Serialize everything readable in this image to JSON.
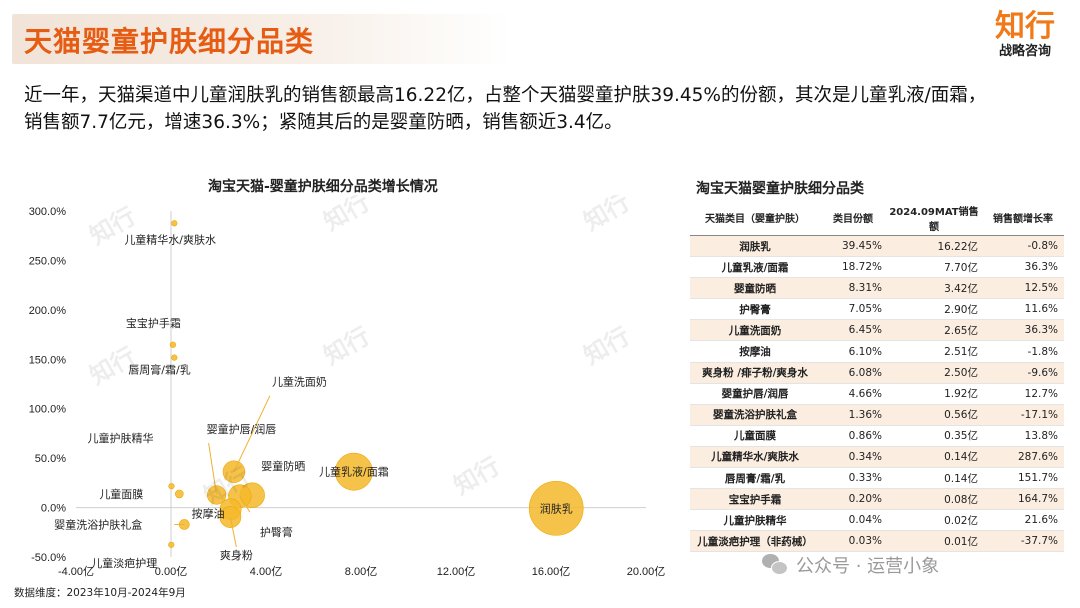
{
  "header": {
    "title": "天猫婴童护肤细分品类",
    "logo_main": "知行",
    "logo_sub": "战略咨询"
  },
  "summary": {
    "line1": "近一年，天猫渠道中儿童润肤乳的销售额最高16.22亿，占整个天猫婴童护肤39.45%的份额，其次是儿童乳液/面霜，",
    "line2": "销售额7.7亿元，增速36.3%；紧随其后的是婴童防晒，销售额近3.4亿。"
  },
  "source": "数据维度：2023年10月-2024年9月",
  "watermark": {
    "text_main": "知行",
    "text_sub": "战略咨询"
  },
  "footer": {
    "brand": "公众号 · 运营小象",
    "icon": "wechat-icon"
  },
  "colors": {
    "accent": "#e65c12",
    "bubble": "#f5b82a",
    "table_alt": "#fbeee1"
  },
  "chart_data": {
    "type": "scatter",
    "title": "淘宝天猫-婴童护肤细分品类增长情况",
    "xlabel": "",
    "ylabel": "",
    "xlim": [
      -4,
      20
    ],
    "ylim": [
      -50,
      300
    ],
    "x_ticks": [
      "-4.00亿",
      "0.00亿",
      "4.00亿",
      "8.00亿",
      "12.00亿",
      "16.00亿",
      "20.00亿"
    ],
    "y_ticks": [
      "300.0%",
      "250.0%",
      "200.0%",
      "150.0%",
      "100.0%",
      "50.0%",
      "0.0%",
      "-50.0%"
    ],
    "grid": false,
    "points": [
      {
        "name": "润肤乳",
        "x": 16.22,
        "y": -0.8,
        "share": 39.45
      },
      {
        "name": "儿童乳液/面霜",
        "x": 7.7,
        "y": 36.3,
        "share": 18.72
      },
      {
        "name": "婴童防晒",
        "x": 3.42,
        "y": 12.5,
        "share": 8.31
      },
      {
        "name": "护臀膏",
        "x": 2.9,
        "y": 11.6,
        "share": 7.05
      },
      {
        "name": "儿童洗面奶",
        "x": 2.65,
        "y": 36.3,
        "share": 6.45
      },
      {
        "name": "按摩油",
        "x": 2.51,
        "y": -1.8,
        "share": 6.1
      },
      {
        "name": "爽身粉",
        "x": 2.5,
        "y": -9.6,
        "share": 6.08
      },
      {
        "name": "婴童护唇/润唇",
        "x": 1.92,
        "y": 12.7,
        "share": 4.66
      },
      {
        "name": "婴童洗浴护肤礼盒",
        "x": 0.56,
        "y": -17.1,
        "share": 1.36
      },
      {
        "name": "儿童面膜",
        "x": 0.35,
        "y": 13.8,
        "share": 0.86
      },
      {
        "name": "儿童精华水/爽肤水",
        "x": 0.14,
        "y": 287.6,
        "share": 0.34
      },
      {
        "name": "唇周膏/霜/乳",
        "x": 0.14,
        "y": 151.7,
        "share": 0.33
      },
      {
        "name": "宝宝护手霜",
        "x": 0.08,
        "y": 164.7,
        "share": 0.2
      },
      {
        "name": "儿童护肤精华",
        "x": 0.02,
        "y": 21.6,
        "share": 0.04
      },
      {
        "name": "儿童淡疤护理",
        "x": 0.01,
        "y": -37.7,
        "share": 0.03
      }
    ],
    "labels": {
      "润肤乳": "润肤乳",
      "儿童乳液/面霜": "儿童乳液/面霜",
      "婴童防晒": "婴童防晒",
      "护臀膏": "护臀膏",
      "儿童洗面奶": "儿童洗面奶",
      "按摩油": "按摩油",
      "爽身粉": "爽身粉",
      "婴童护唇/润唇": "婴童护唇/润唇",
      "婴童洗浴护肤礼盒": "婴童洗浴护肤礼盒",
      "儿童面膜": "儿童面膜",
      "儿童精华水/爽肤水": "儿童精华水/爽肤水",
      "唇周膏/霜/乳": "唇周膏/霜/乳",
      "宝宝护手霜": "宝宝护手霜",
      "儿童护肤精华": "儿童护肤精华",
      "儿童淡疤护理": "儿童淡疤护理"
    }
  },
  "table": {
    "title": "淘宝天猫婴童护肤细分品类",
    "headers": [
      "天猫类目（婴童护肤）",
      "类目份额",
      "2024.09MAT销售额",
      "销售额增长率"
    ],
    "rows": [
      [
        "润肤乳",
        "39.45%",
        "16.22亿",
        "-0.8%"
      ],
      [
        "儿童乳液/面霜",
        "18.72%",
        "7.70亿",
        "36.3%"
      ],
      [
        "婴童防晒",
        "8.31%",
        "3.42亿",
        "12.5%"
      ],
      [
        "护臀膏",
        "7.05%",
        "2.90亿",
        "11.6%"
      ],
      [
        "儿童洗面奶",
        "6.45%",
        "2.65亿",
        "36.3%"
      ],
      [
        "按摩油",
        "6.10%",
        "2.51亿",
        "-1.8%"
      ],
      [
        "爽身粉 /痱子粉/爽身水",
        "6.08%",
        "2.50亿",
        "-9.6%"
      ],
      [
        "婴童护唇/润唇",
        "4.66%",
        "1.92亿",
        "12.7%"
      ],
      [
        "婴童洗浴护肤礼盒",
        "1.36%",
        "0.56亿",
        "-17.1%"
      ],
      [
        "儿童面膜",
        "0.86%",
        "0.35亿",
        "13.8%"
      ],
      [
        "儿童精华水/爽肤水",
        "0.34%",
        "0.14亿",
        "287.6%"
      ],
      [
        "唇周膏/霜/乳",
        "0.33%",
        "0.14亿",
        "151.7%"
      ],
      [
        "宝宝护手霜",
        "0.20%",
        "0.08亿",
        "164.7%"
      ],
      [
        "儿童护肤精华",
        "0.04%",
        "0.02亿",
        "21.6%"
      ],
      [
        "儿童淡疤护理（非药械）",
        "0.03%",
        "0.01亿",
        "-37.7%"
      ]
    ]
  }
}
